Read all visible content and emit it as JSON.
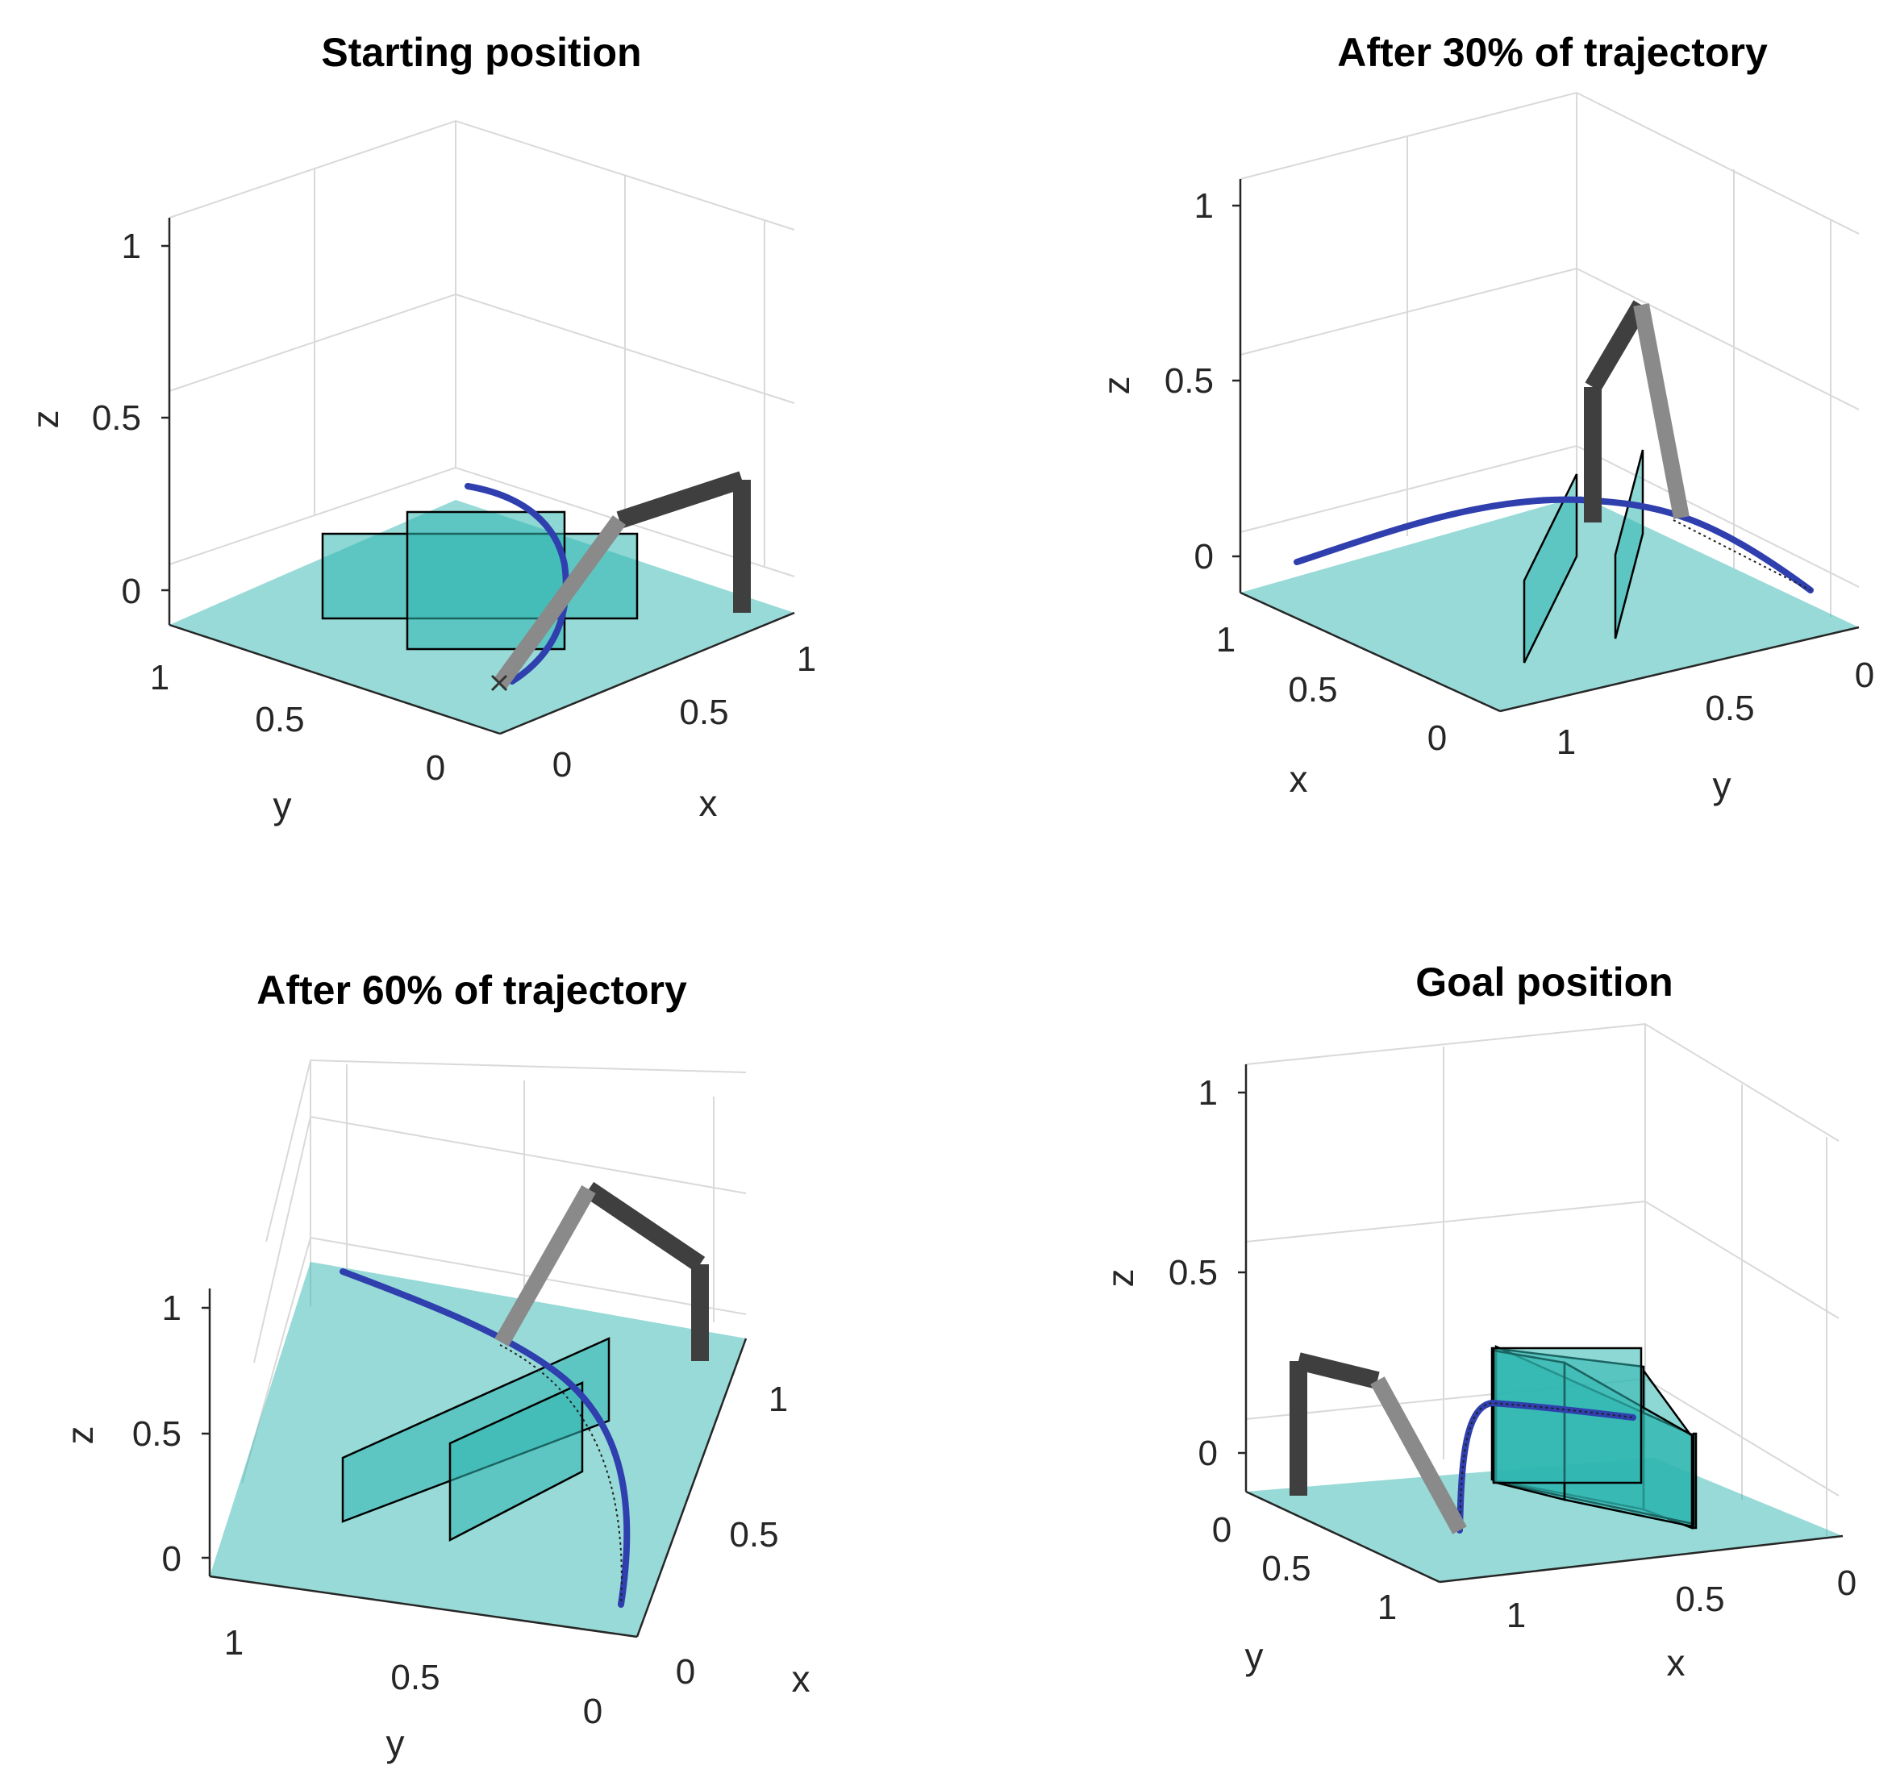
{
  "chart_data": [
    {
      "type": "3d-line",
      "title": "Starting position",
      "xlabel": "x",
      "ylabel": "y",
      "zlabel": "z",
      "xticks": [
        "0",
        "0.5",
        "1"
      ],
      "yticks": [
        "1",
        "0.5",
        "0"
      ],
      "zticks": [
        "1",
        "0.5",
        "0"
      ],
      "xlim": [
        0,
        1
      ],
      "ylim": [
        0,
        1
      ],
      "zlim": [
        -0.1,
        1.1
      ],
      "grid": true,
      "series": [
        {
          "name": "trajectory",
          "color": "#2f3fae"
        },
        {
          "name": "robot arm link 1",
          "color": "#3f3f3f"
        },
        {
          "name": "robot arm link 2",
          "color": "#8a8a8a"
        },
        {
          "name": "obstacles",
          "color": "#2fb6b0"
        }
      ]
    },
    {
      "type": "3d-line",
      "title": "After 30% of trajectory",
      "xlabel": "x",
      "ylabel": "y",
      "zlabel": "z",
      "xticks": [
        "1",
        "0.5",
        "0"
      ],
      "yticks": [
        "1",
        "0.5",
        "0"
      ],
      "zticks": [
        "1",
        "0.5",
        "0"
      ],
      "xlim": [
        0,
        1
      ],
      "ylim": [
        0,
        1
      ],
      "zlim": [
        -0.1,
        1.1
      ],
      "grid": true,
      "series": [
        {
          "name": "trajectory",
          "color": "#2f3fae"
        },
        {
          "name": "robot arm link 1",
          "color": "#3f3f3f"
        },
        {
          "name": "robot arm link 2",
          "color": "#8a8a8a"
        },
        {
          "name": "obstacles",
          "color": "#2fb6b0"
        }
      ]
    },
    {
      "type": "3d-line",
      "title": "After 60% of trajectory",
      "xlabel": "x",
      "ylabel": "y",
      "zlabel": "z",
      "xticks": [
        "0",
        "0.5",
        "1"
      ],
      "yticks": [
        "1",
        "0.5",
        "0"
      ],
      "zticks": [
        "1",
        "0.5",
        "0"
      ],
      "xlim": [
        0,
        1
      ],
      "ylim": [
        0,
        1
      ],
      "zlim": [
        -0.1,
        1.1
      ],
      "grid": true,
      "series": [
        {
          "name": "trajectory",
          "color": "#2f3fae"
        },
        {
          "name": "robot arm link 1",
          "color": "#3f3f3f"
        },
        {
          "name": "robot arm link 2",
          "color": "#8a8a8a"
        },
        {
          "name": "obstacles",
          "color": "#2fb6b0"
        }
      ]
    },
    {
      "type": "3d-line",
      "title": "Goal position",
      "xlabel": "x",
      "ylabel": "y",
      "zlabel": "z",
      "xticks": [
        "1",
        "0.5",
        "0"
      ],
      "yticks": [
        "0",
        "0.5",
        "1"
      ],
      "zticks": [
        "1",
        "0.5",
        "0"
      ],
      "xlim": [
        0,
        1
      ],
      "ylim": [
        0,
        1
      ],
      "zlim": [
        -0.1,
        1.1
      ],
      "grid": true,
      "series": [
        {
          "name": "trajectory",
          "color": "#2f3fae"
        },
        {
          "name": "robot arm link 1",
          "color": "#3f3f3f"
        },
        {
          "name": "robot arm link 2",
          "color": "#8a8a8a"
        },
        {
          "name": "obstacles",
          "color": "#2fb6b0"
        }
      ]
    }
  ]
}
